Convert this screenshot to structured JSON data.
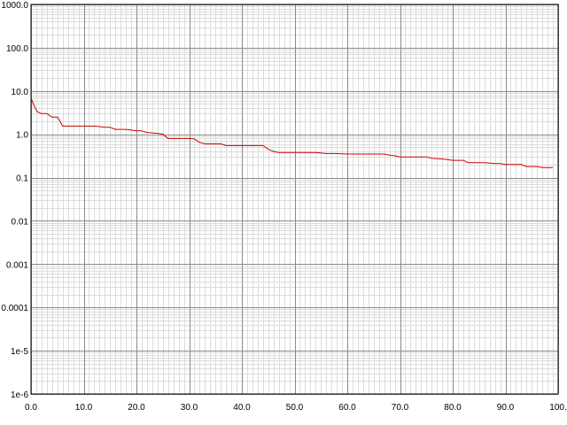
{
  "chart_data": {
    "type": "line",
    "title": "",
    "xlabel": "",
    "ylabel": "",
    "y_scale": "log",
    "xlim": [
      0,
      100
    ],
    "ylim": [
      1e-06,
      1000
    ],
    "grid": true,
    "x_ticks": [
      "0.0",
      "10.0",
      "20.0",
      "30.0",
      "40.0",
      "50.0",
      "60.0",
      "70.0",
      "80.0",
      "90.0",
      "100."
    ],
    "y_ticks": [
      "1000.0",
      "100.0",
      "10.0",
      "1.0",
      "0.1",
      "0.01",
      "0.001",
      "0.0001",
      "1e-5",
      "1e-6"
    ],
    "series": [
      {
        "color": "#cc0000",
        "x": [
          0,
          0.6,
          1.2,
          2,
          3,
          3.4,
          4,
          5,
          5.5,
          6,
          8,
          10,
          12,
          14,
          15,
          16,
          18,
          19,
          20,
          21,
          22,
          24,
          25,
          26,
          28,
          30,
          31,
          32,
          33,
          35,
          36,
          37,
          40,
          42,
          44,
          45,
          46,
          47,
          50,
          52,
          54,
          56,
          58,
          60,
          62,
          64,
          66,
          67,
          68,
          69,
          70,
          72,
          74,
          75,
          76,
          78,
          79,
          80,
          82,
          83,
          85,
          86,
          88,
          89,
          90,
          92,
          93,
          94,
          96,
          97,
          98,
          99
        ],
        "y": [
          7,
          4.5,
          3.3,
          3,
          3,
          2.8,
          2.5,
          2.5,
          2,
          1.55,
          1.55,
          1.55,
          1.55,
          1.45,
          1.45,
          1.3,
          1.3,
          1.25,
          1.2,
          1.2,
          1.1,
          1.05,
          1,
          0.8,
          0.8,
          0.8,
          0.78,
          0.65,
          0.6,
          0.6,
          0.6,
          0.55,
          0.55,
          0.55,
          0.55,
          0.45,
          0.4,
          0.38,
          0.38,
          0.38,
          0.38,
          0.36,
          0.36,
          0.35,
          0.35,
          0.35,
          0.35,
          0.35,
          0.33,
          0.32,
          0.3,
          0.3,
          0.3,
          0.3,
          0.28,
          0.27,
          0.26,
          0.25,
          0.25,
          0.22,
          0.22,
          0.22,
          0.21,
          0.21,
          0.2,
          0.2,
          0.2,
          0.18,
          0.18,
          0.17,
          0.17,
          0.17
        ]
      }
    ]
  }
}
